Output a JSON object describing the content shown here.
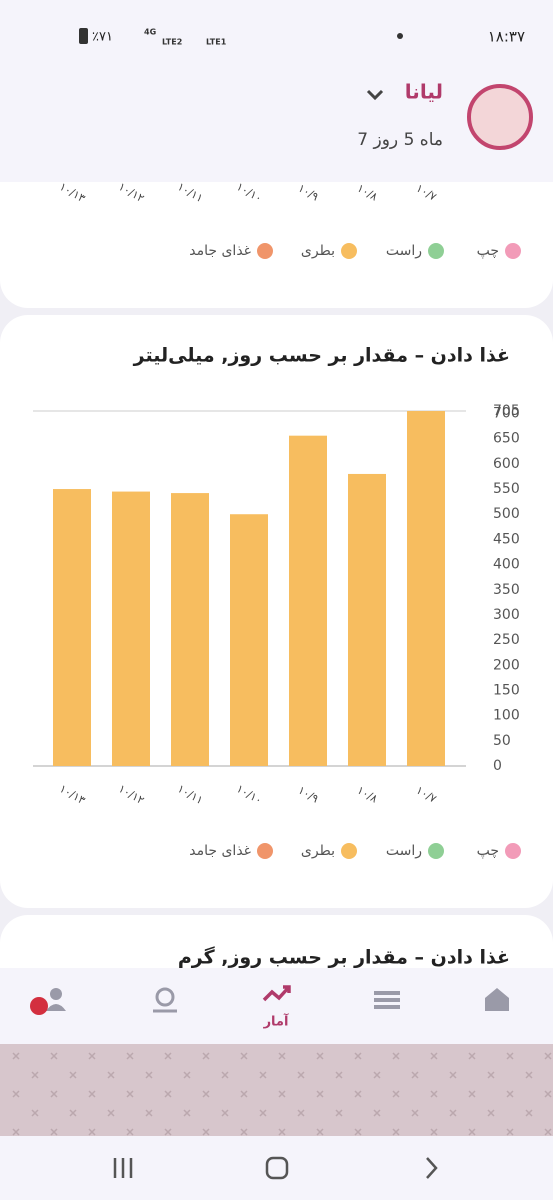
{
  "status_bar": {
    "time": "۱۸:۳۷",
    "battery": "٪۷۱",
    "network_1": "4G",
    "network_2": "LTE2",
    "network_3": "LTE1"
  },
  "header": {
    "name": "لیانا",
    "age": "7 ماه 5 روز"
  },
  "top_card": {
    "categories": [
      "۱۰/۱۳",
      "۱۰/۱۲",
      "۱۰/۱۱",
      "۱۰/۱۰",
      "۱۰/۹",
      "۱۰/۸",
      "۱۰/۷"
    ],
    "legend": [
      {
        "name": "چپ",
        "color": "#f29bb8"
      },
      {
        "name": "راست",
        "color": "#8fcf95"
      },
      {
        "name": "بطری",
        "color": "#f7bd5f"
      },
      {
        "name": "غذای جامد",
        "color": "#f0956a"
      }
    ]
  },
  "chart_data": {
    "type": "bar",
    "title": "غذا دادن – مقدار بر حسب روز, میلی‌لیتر",
    "categories": [
      "۱۰/۱۳",
      "۱۰/۱۲",
      "۱۰/۱۱",
      "۱۰/۱۰",
      "۱۰/۹",
      "۱۰/۸",
      "۱۰/۷"
    ],
    "values": [
      550,
      545,
      542,
      500,
      656,
      580,
      705
    ],
    "color": "#f7bd5f",
    "ylim": [
      0,
      705
    ],
    "yticks": [
      0,
      50,
      100,
      150,
      200,
      250,
      300,
      350,
      400,
      450,
      500,
      550,
      600,
      650,
      700,
      705
    ],
    "grid": false,
    "legend": [
      {
        "name": "چپ",
        "color": "#f29bb8"
      },
      {
        "name": "راست",
        "color": "#8fcf95"
      },
      {
        "name": "بطری",
        "color": "#f7bd5f"
      },
      {
        "name": "غذای جامد",
        "color": "#f0956a"
      }
    ]
  },
  "next_card": {
    "title": "غذا دادن – مقدار بر حسب روز, گرم"
  },
  "nav": {
    "active_label": "آمار"
  }
}
